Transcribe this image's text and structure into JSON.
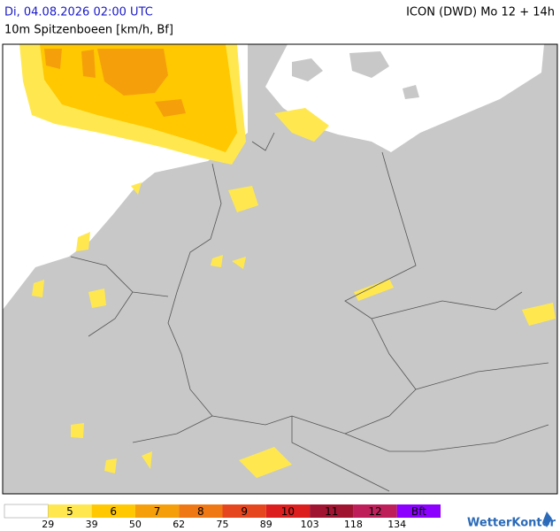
{
  "header": {
    "left_title": "Di, 04.08.2026 02:00 UTC",
    "subtitle": "10m Spitzenboeen [km/h, Bf]",
    "right_title": "ICON (DWD) Mo 12 + 14h"
  },
  "legend": {
    "base_color": "#ffffff",
    "bands": [
      {
        "label": "5",
        "color": "#ffe84f"
      },
      {
        "label": "6",
        "color": "#ffc800"
      },
      {
        "label": "7",
        "color": "#f5a00a"
      },
      {
        "label": "8",
        "color": "#f07814"
      },
      {
        "label": "9",
        "color": "#e6461e"
      },
      {
        "label": "10",
        "color": "#dc1e1e"
      },
      {
        "label": "11",
        "color": "#a01432"
      },
      {
        "label": "12",
        "color": "#be1e5a"
      },
      {
        "label": "Bft",
        "color": "#8c00ff"
      }
    ],
    "thresholds": [
      "29",
      "39",
      "50",
      "62",
      "75",
      "89",
      "103",
      "118",
      "134"
    ]
  },
  "logo": "WetterKontor"
}
